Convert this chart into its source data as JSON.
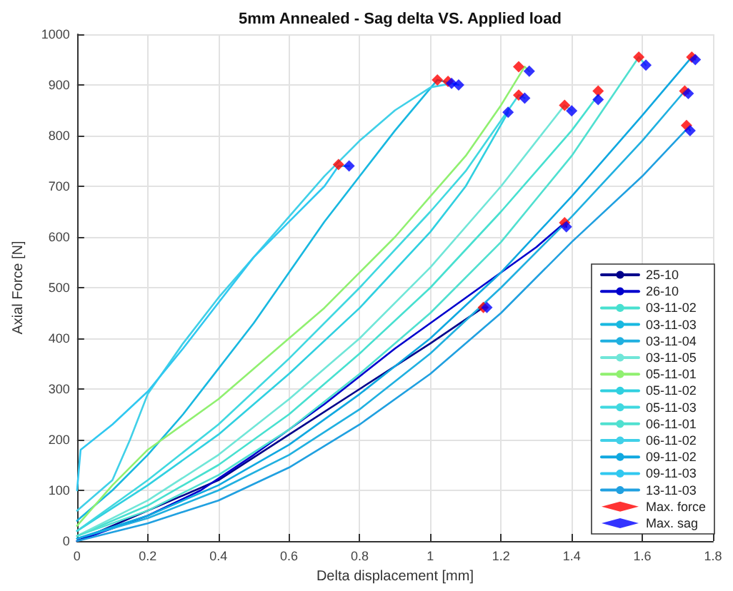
{
  "chart_data": {
    "type": "line",
    "title": "5mm Annealed - Sag delta VS. Applied load",
    "xlabel": "Delta displacement [mm]",
    "ylabel": "Axial Force [N]",
    "xlim": [
      0,
      1.8
    ],
    "xticks": [
      0,
      0.2,
      0.4,
      0.6,
      0.8,
      1,
      1.2,
      1.4,
      1.6,
      1.8
    ],
    "ylim": [
      0,
      1000
    ],
    "yticks": [
      0,
      100,
      200,
      300,
      400,
      500,
      600,
      700,
      800,
      900,
      1000
    ],
    "grid": true,
    "legend": "bottom right",
    "marker": "none",
    "line_style": "solid",
    "series": [
      {
        "name": "25-10",
        "color": "#00008b",
        "x": [
          0,
          0.4,
          0.6,
          0.8,
          1.0,
          1.15,
          1.16
        ],
        "values": [
          0,
          120,
          210,
          300,
          390,
          461,
          461
        ]
      },
      {
        "name": "26-10",
        "color": "#0000cd",
        "x": [
          0,
          0.2,
          0.35,
          0.5,
          0.7,
          0.9,
          1.1,
          1.3,
          1.38,
          1.385
        ],
        "values": [
          0,
          50,
          100,
          170,
          270,
          380,
          480,
          580,
          628,
          620
        ]
      },
      {
        "name": "03-11-02",
        "color": "#48e0d0",
        "x": [
          0,
          0.2,
          0.4,
          0.6,
          0.8,
          1.0,
          1.2,
          1.4,
          1.475
        ],
        "values": [
          10,
          70,
          150,
          250,
          370,
          500,
          650,
          810,
          880
        ]
      },
      {
        "name": "03-11-03",
        "color": "#18b8e0",
        "x": [
          0,
          0.1,
          0.2,
          0.3,
          0.4,
          0.5,
          0.6,
          0.7,
          0.8,
          0.9,
          1.02,
          1.08
        ],
        "values": [
          40,
          100,
          170,
          250,
          340,
          430,
          530,
          630,
          720,
          810,
          910,
          900
        ]
      },
      {
        "name": "03-11-04",
        "color": "#20b0e0",
        "x": [
          0,
          0.2,
          0.4,
          0.6,
          0.8,
          1.0,
          1.2,
          1.4,
          1.6,
          1.72,
          1.73
        ],
        "values": [
          5,
          45,
          100,
          170,
          260,
          370,
          500,
          640,
          790,
          888,
          883
        ]
      },
      {
        "name": "03-11-05",
        "color": "#70e6d8",
        "x": [
          0,
          0.2,
          0.4,
          0.6,
          0.8,
          1.0,
          1.2,
          1.38,
          1.4
        ],
        "values": [
          10,
          80,
          170,
          280,
          400,
          540,
          700,
          860,
          849
        ]
      },
      {
        "name": "05-11-01",
        "color": "#90f070",
        "x": [
          0,
          0.1,
          0.2,
          0.4,
          0.6,
          0.7,
          0.8,
          0.9,
          1.0,
          1.1,
          1.2,
          1.267,
          1.28
        ],
        "values": [
          30,
          110,
          180,
          280,
          400,
          460,
          530,
          600,
          680,
          760,
          860,
          936,
          927
        ]
      },
      {
        "name": "05-11-02",
        "color": "#30d0e0",
        "x": [
          0,
          0.2,
          0.4,
          0.6,
          0.8,
          1.0,
          1.1,
          1.22
        ],
        "values": [
          20,
          110,
          210,
          330,
          460,
          610,
          700,
          846
        ]
      },
      {
        "name": "05-11-03",
        "color": "#40d8e0",
        "x": [
          0,
          0.2,
          0.4,
          0.6,
          0.8,
          1.0,
          1.1,
          1.25,
          1.267
        ],
        "values": [
          20,
          120,
          230,
          360,
          500,
          650,
          730,
          880,
          874
        ]
      },
      {
        "name": "06-11-01",
        "color": "#50e0d0",
        "x": [
          0,
          0.2,
          0.4,
          0.6,
          0.8,
          1.0,
          1.2,
          1.4,
          1.59,
          1.61
        ],
        "values": [
          10,
          60,
          130,
          220,
          330,
          450,
          590,
          760,
          955,
          939
        ]
      },
      {
        "name": "06-11-02",
        "color": "#40d0e8",
        "x": [
          0,
          0.1,
          0.15,
          0.2,
          0.3,
          0.4,
          0.5,
          0.6,
          0.7,
          0.8,
          0.9,
          1.0,
          1.06
        ],
        "values": [
          60,
          120,
          200,
          290,
          390,
          480,
          560,
          640,
          720,
          790,
          850,
          895,
          903
        ]
      },
      {
        "name": "09-11-02",
        "color": "#10a8e0",
        "x": [
          0,
          0.2,
          0.4,
          0.6,
          0.8,
          1.0,
          1.2,
          1.4,
          1.6,
          1.74,
          1.75
        ],
        "values": [
          5,
          50,
          110,
          190,
          290,
          400,
          530,
          680,
          840,
          955,
          950
        ]
      },
      {
        "name": "09-11-03",
        "color": "#30c8f0",
        "x": [
          0,
          0.01,
          0.1,
          0.2,
          0.3,
          0.4,
          0.5,
          0.6,
          0.7,
          0.74,
          0.77
        ],
        "values": [
          100,
          180,
          230,
          295,
          380,
          470,
          560,
          630,
          700,
          740,
          740
        ]
      },
      {
        "name": "13-11-03",
        "color": "#20a0e0",
        "x": [
          0,
          0.2,
          0.4,
          0.6,
          0.8,
          1.0,
          1.2,
          1.4,
          1.6,
          1.73,
          1.735
        ],
        "values": [
          0,
          35,
          80,
          145,
          230,
          330,
          450,
          590,
          720,
          816,
          810
        ]
      },
      {
        "name": "Max. force",
        "type": "scatter",
        "marker": "diamond",
        "color": "#ff0000",
        "x": [
          1.15,
          1.38,
          1.475,
          1.02,
          1.72,
          1.38,
          1.25,
          null,
          1.25,
          1.59,
          1.05,
          1.74,
          0.74,
          1.725
        ],
        "values": [
          461,
          628,
          888,
          910,
          888,
          860,
          936,
          null,
          880,
          955,
          907,
          955,
          743,
          820
        ]
      },
      {
        "name": "Max. sag",
        "type": "scatter",
        "marker": "diamond",
        "color": "#0000ff",
        "x": [
          1.16,
          1.385,
          1.475,
          1.08,
          1.73,
          1.4,
          1.28,
          1.22,
          1.267,
          1.61,
          1.06,
          1.75,
          0.77,
          1.735
        ],
        "values": [
          461,
          620,
          871,
          900,
          883,
          849,
          927,
          846,
          874,
          939,
          903,
          950,
          740,
          810
        ]
      }
    ]
  }
}
